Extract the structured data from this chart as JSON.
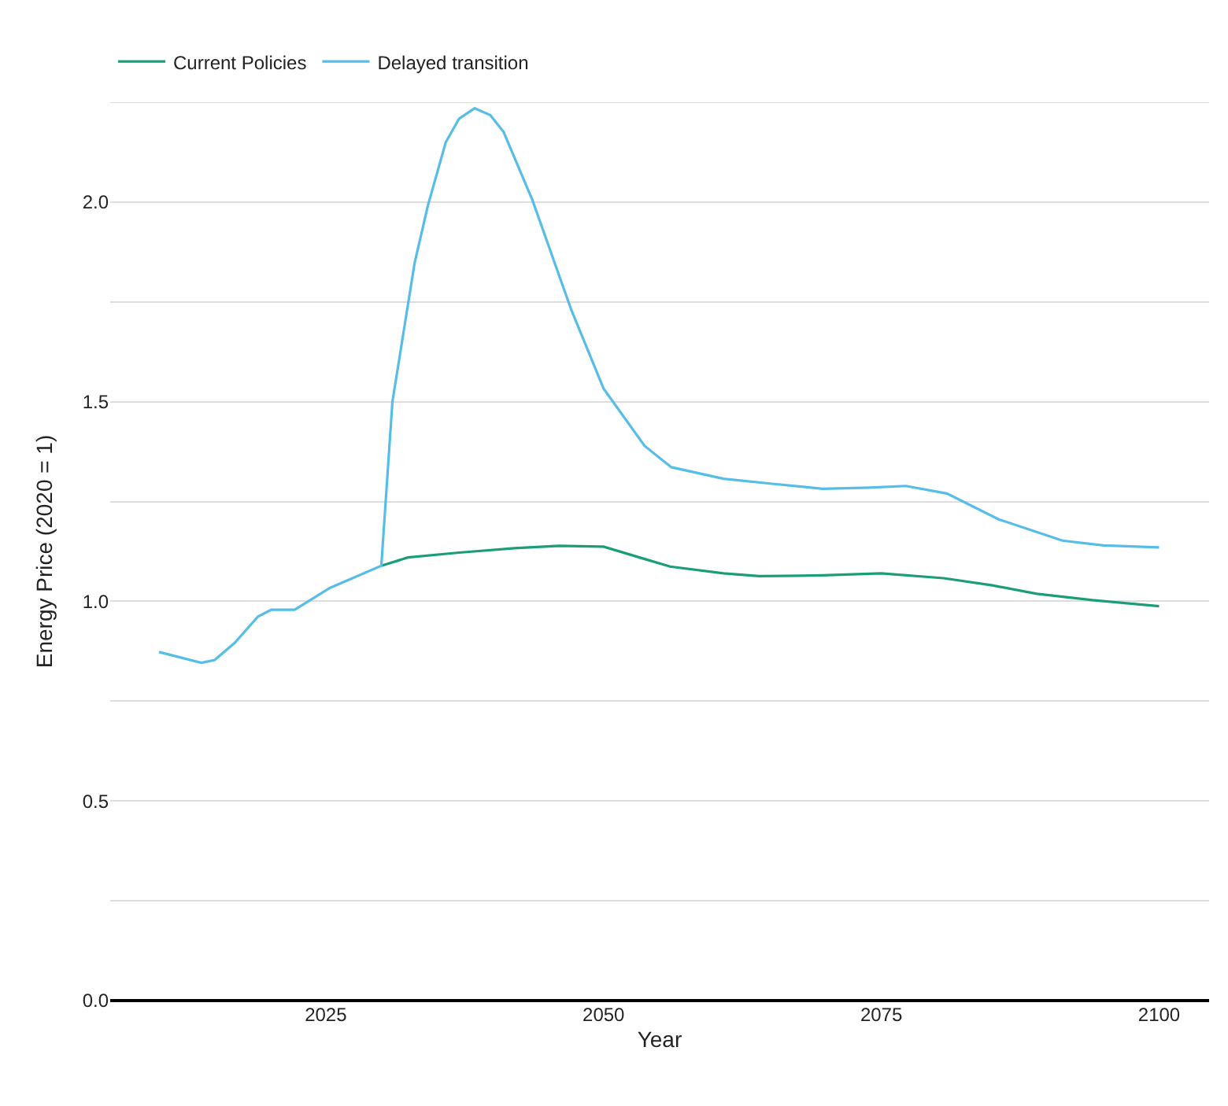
{
  "chart_data": {
    "type": "line",
    "xlabel": "Year",
    "ylabel": "Energy Price (2020 = 1)",
    "xlim": [
      2005.6,
      2104.5
    ],
    "xticks": [
      2025,
      2050,
      2075,
      2100
    ],
    "ylim": [
      0,
      2.25
    ],
    "yticks": [
      {
        "value": 0,
        "label": "0.0"
      },
      {
        "value": 0.25,
        "label": null
      },
      0.5,
      {
        "value": 0.75,
        "label": null
      },
      {
        "value": 1,
        "label": "1.0"
      },
      {
        "value": 1.25,
        "label": null
      },
      1.5,
      {
        "value": 1.75,
        "label": null
      },
      {
        "value": 2,
        "label": "2.0"
      },
      {
        "value": 2.25,
        "label": null
      }
    ],
    "grid": "y",
    "legend": "top left",
    "line_style": "solid",
    "marker": "none",
    "series": [
      {
        "name": "Current Policies",
        "color": "#1b9e77",
        "x": [
          2030,
          2032.4,
          2037,
          2042,
          2046,
          2050,
          2053.7,
          2056,
          2060.8,
          2064,
          2069.7,
          2075,
          2080.6,
          2085,
          2089,
          2094,
          2100
        ],
        "values": [
          1.089,
          1.11,
          1.122,
          1.133,
          1.139,
          1.137,
          1.106,
          1.087,
          1.07,
          1.063,
          1.065,
          1.07,
          1.058,
          1.04,
          1.019,
          1.003,
          0.988
        ]
      },
      {
        "name": "Delayed transition",
        "color": "#56bde8",
        "x": [
          2010,
          2013.8,
          2015,
          2016.8,
          2018.9,
          2020.1,
          2022.2,
          2025.4,
          2030,
          2031,
          2033,
          2034.2,
          2035.8,
          2037,
          2038.4,
          2039.8,
          2041,
          2043.6,
          2047.1,
          2050,
          2053.7,
          2056.1,
          2060.8,
          2065,
          2069.7,
          2074,
          2077.2,
          2080.9,
          2085.6,
          2091.3,
          2095,
          2100
        ],
        "values": [
          0.873,
          0.846,
          0.853,
          0.896,
          0.962,
          0.979,
          0.979,
          1.034,
          1.089,
          1.5,
          1.848,
          1.992,
          2.15,
          2.209,
          2.235,
          2.218,
          2.176,
          2.005,
          1.73,
          1.533,
          1.389,
          1.336,
          1.307,
          1.295,
          1.282,
          1.285,
          1.289,
          1.27,
          1.205,
          1.152,
          1.14,
          1.135
        ]
      }
    ]
  }
}
